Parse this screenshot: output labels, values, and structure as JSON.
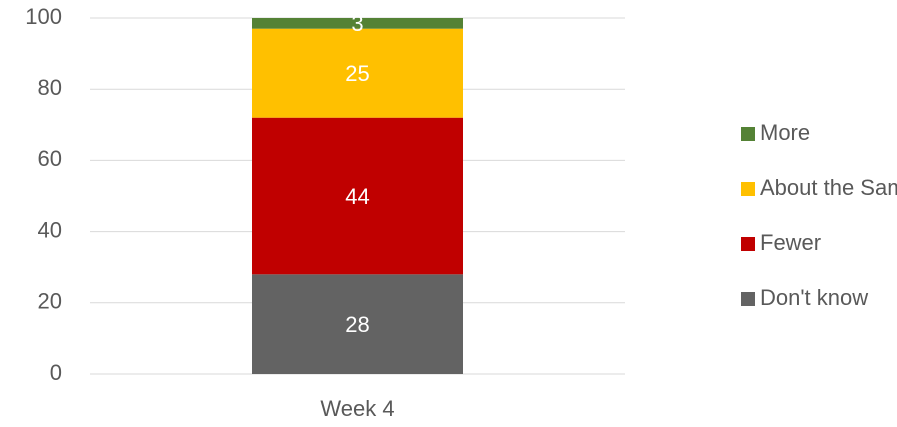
{
  "chart_data": {
    "type": "stacked_bar",
    "categories": [
      "Week 4"
    ],
    "series": [
      {
        "name": "Don't know",
        "color": "#636363",
        "values": [
          28
        ]
      },
      {
        "name": "Fewer",
        "color": "#c00000",
        "values": [
          44
        ]
      },
      {
        "name": "About the Same",
        "color": "#ffc000",
        "values": [
          25
        ]
      },
      {
        "name": "More",
        "color": "#548235",
        "values": [
          3
        ]
      }
    ],
    "ylim": [
      0,
      100
    ],
    "yticks": [
      0,
      20,
      40,
      60,
      80,
      100
    ],
    "grid": true,
    "legend": "right"
  }
}
